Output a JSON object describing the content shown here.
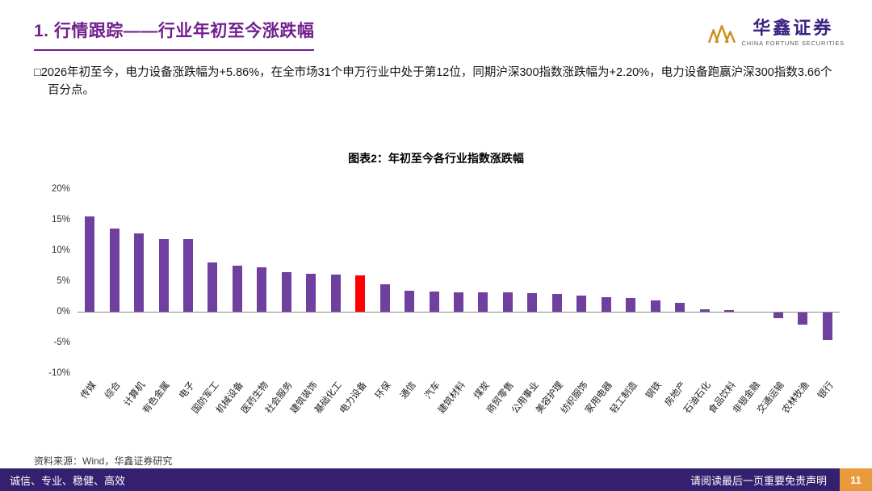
{
  "header": {
    "title": "1. 行情跟踪——行业年初至今涨跌幅",
    "logo_cn": "华鑫证券",
    "logo_en": "CHINA FORTUNE SECURITIES"
  },
  "body": {
    "bullet": "□",
    "paragraph": "2026年初至今，电力设备涨跌幅为+5.86%，在全市场31个申万行业中处于第12位，同期沪深300指数涨跌幅为+2.20%，电力设备跑赢沪深300指数3.66个百分点。",
    "source": "资料来源：Wind，华鑫证券研究"
  },
  "footer": {
    "left": "诚信、专业、稳健、高效",
    "right": "请阅读最后一页重要免责声明",
    "page": "11"
  },
  "chart_data": {
    "type": "bar",
    "title": "图表2：年初至今各行业指数涨跌幅",
    "categories": [
      "传媒",
      "综合",
      "计算机",
      "有色金属",
      "电子",
      "国防军工",
      "机械设备",
      "医药生物",
      "社会服务",
      "建筑装饰",
      "基础化工",
      "电力设备",
      "环保",
      "通信",
      "汽车",
      "建筑材料",
      "煤炭",
      "商贸零售",
      "公用事业",
      "美容护理",
      "纺织服饰",
      "家用电器",
      "轻工制造",
      "钢铁",
      "房地产",
      "石油石化",
      "食品饮料",
      "非银金融",
      "交通运输",
      "农林牧渔",
      "银行"
    ],
    "values": [
      15.5,
      13.5,
      12.7,
      11.9,
      11.8,
      8.0,
      7.5,
      7.2,
      6.4,
      6.2,
      6.0,
      5.86,
      4.5,
      3.4,
      3.3,
      3.2,
      3.2,
      3.1,
      3.0,
      2.9,
      2.6,
      2.3,
      2.2,
      1.9,
      1.5,
      0.4,
      0.3,
      -0.2,
      -1.0,
      -2.1,
      -4.6
    ],
    "highlight_category": "电力设备",
    "bar_color": "#7040A0",
    "highlight_color": "#FF0000",
    "ylim": [
      -10,
      20
    ],
    "yticks": [
      "20%",
      "15%",
      "10%",
      "5%",
      "0%",
      "-5%",
      "-10%"
    ],
    "xlabel": "",
    "ylabel": "",
    "grid": false,
    "legend": false
  }
}
